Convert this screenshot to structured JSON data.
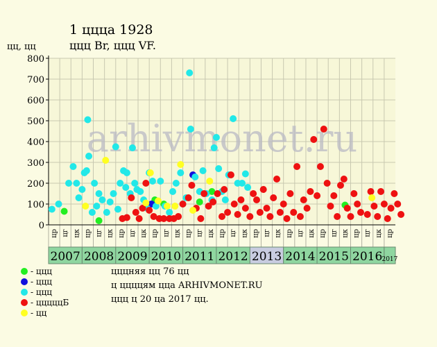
{
  "title_line1": "1 цццa 1928",
  "title_line2": "ццц Br, ццц VF.",
  "y_axis_unit": "цц, цц",
  "watermark": "arhivmonet.ru",
  "notes": [
    "цццняя цц 76 цц",
    "ц ццццям цца ARHIVMONET.RU",
    "ццц ц 20 цa 2017 цц."
  ],
  "legend": [
    {
      "color": "#22ee22",
      "label": "- ццц"
    },
    {
      "color": "#1010dd",
      "label": "- ццц"
    },
    {
      "color": "#22e8e8",
      "label": "- ццц"
    },
    {
      "color": "#ee1111",
      "label": "- цццццБ"
    },
    {
      "color": "#ffff22",
      "label": "- цц"
    }
  ],
  "chart_data": {
    "type": "scatter",
    "ylim": [
      0,
      800
    ],
    "yticks": [
      0,
      100,
      200,
      300,
      400,
      500,
      600,
      700,
      800
    ],
    "quarter_labels": [
      "цр",
      "цг",
      "цк"
    ],
    "years": [
      {
        "label": "2007",
        "quarters": 3,
        "color": "#8fd6a0"
      },
      {
        "label": "2008",
        "quarters": 3,
        "color": "#8fd6a0"
      },
      {
        "label": "2009",
        "quarters": 3,
        "color": "#8fd6a0"
      },
      {
        "label": "2010",
        "quarters": 3,
        "color": "#8fd6a0"
      },
      {
        "label": "2011",
        "quarters": 3,
        "color": "#8fd6a0"
      },
      {
        "label": "2012",
        "quarters": 3,
        "color": "#8fd6a0"
      },
      {
        "label": "2013",
        "quarters": 3,
        "color": "#c8cce0"
      },
      {
        "label": "2014",
        "quarters": 3,
        "color": "#8fd6a0"
      },
      {
        "label": "2015",
        "quarters": 3,
        "color": "#8fd6a0"
      },
      {
        "label": "2016",
        "quarters": 3,
        "color": "#8fd6a0"
      },
      {
        "label": "2017",
        "quarters": 1,
        "color": "#8fd6a0"
      }
    ],
    "series": [
      {
        "name": "ццц",
        "color": "#22ee22",
        "points": [
          [
            1.4,
            65
          ],
          [
            4.5,
            20
          ],
          [
            9.5,
            120
          ],
          [
            10.3,
            100
          ],
          [
            13.5,
            110
          ],
          [
            14.6,
            160
          ],
          [
            26.5,
            95
          ]
        ]
      },
      {
        "name": "ццц",
        "color": "#1010dd",
        "points": [
          [
            9.2,
            100
          ],
          [
            12.9,
            240
          ]
        ]
      },
      {
        "name": "ццц",
        "color": "#22e8e8",
        "points": [
          [
            0.3,
            75
          ],
          [
            0.9,
            100
          ],
          [
            1.8,
            200
          ],
          [
            2.2,
            280
          ],
          [
            2.5,
            200
          ],
          [
            2.7,
            130
          ],
          [
            3.0,
            170
          ],
          [
            3.2,
            250
          ],
          [
            3.4,
            260
          ],
          [
            3.5,
            505
          ],
          [
            3.6,
            330
          ],
          [
            3.9,
            60
          ],
          [
            4.1,
            200
          ],
          [
            4.3,
            90
          ],
          [
            4.5,
            150
          ],
          [
            4.8,
            120
          ],
          [
            5.2,
            60
          ],
          [
            5.5,
            110
          ],
          [
            5.8,
            150
          ],
          [
            6.0,
            375
          ],
          [
            6.2,
            75
          ],
          [
            6.4,
            200
          ],
          [
            6.7,
            260
          ],
          [
            6.9,
            180
          ],
          [
            7.0,
            250
          ],
          [
            7.3,
            150
          ],
          [
            7.5,
            370
          ],
          [
            7.7,
            200
          ],
          [
            7.9,
            170
          ],
          [
            8.2,
            160
          ],
          [
            8.5,
            120
          ],
          [
            8.8,
            80
          ],
          [
            9.0,
            250
          ],
          [
            9.3,
            210
          ],
          [
            9.6,
            90
          ],
          [
            10.0,
            210
          ],
          [
            10.4,
            90
          ],
          [
            10.8,
            60
          ],
          [
            11.1,
            160
          ],
          [
            11.4,
            200
          ],
          [
            11.8,
            250
          ],
          [
            12.0,
            100
          ],
          [
            12.3,
            130
          ],
          [
            12.6,
            730
          ],
          [
            12.7,
            460
          ],
          [
            13.1,
            230
          ],
          [
            13.5,
            160
          ],
          [
            13.8,
            260
          ],
          [
            14.1,
            150
          ],
          [
            14.6,
            120
          ],
          [
            14.8,
            370
          ],
          [
            15.0,
            420
          ],
          [
            15.2,
            270
          ],
          [
            15.5,
            160
          ],
          [
            15.8,
            120
          ],
          [
            16.1,
            240
          ],
          [
            16.5,
            510
          ],
          [
            16.9,
            200
          ],
          [
            17.3,
            200
          ],
          [
            17.6,
            245
          ],
          [
            17.8,
            180
          ]
        ]
      },
      {
        "name": "цццццБ",
        "color": "#ee1111",
        "points": [
          [
            6.6,
            30
          ],
          [
            7.0,
            35
          ],
          [
            7.4,
            130
          ],
          [
            7.8,
            60
          ],
          [
            8.1,
            30
          ],
          [
            8.4,
            80
          ],
          [
            8.7,
            200
          ],
          [
            9.0,
            70
          ],
          [
            9.4,
            40
          ],
          [
            9.9,
            30
          ],
          [
            10.3,
            30
          ],
          [
            10.8,
            30
          ],
          [
            11.2,
            30
          ],
          [
            11.6,
            40
          ],
          [
            12.0,
            100
          ],
          [
            12.5,
            130
          ],
          [
            12.8,
            190
          ],
          [
            13.2,
            80
          ],
          [
            13.6,
            30
          ],
          [
            13.9,
            150
          ],
          [
            14.3,
            90
          ],
          [
            14.7,
            110
          ],
          [
            15.1,
            150
          ],
          [
            15.5,
            40
          ],
          [
            15.7,
            170
          ],
          [
            16.0,
            60
          ],
          [
            16.3,
            240
          ],
          [
            16.6,
            100
          ],
          [
            16.9,
            50
          ],
          [
            17.2,
            120
          ],
          [
            17.6,
            80
          ],
          [
            18.0,
            40
          ],
          [
            18.3,
            150
          ],
          [
            18.6,
            120
          ],
          [
            18.9,
            60
          ],
          [
            19.2,
            170
          ],
          [
            19.5,
            80
          ],
          [
            19.8,
            40
          ],
          [
            20.1,
            130
          ],
          [
            20.4,
            220
          ],
          [
            20.7,
            60
          ],
          [
            21.0,
            100
          ],
          [
            21.3,
            30
          ],
          [
            21.6,
            150
          ],
          [
            21.9,
            60
          ],
          [
            22.2,
            280
          ],
          [
            22.5,
            40
          ],
          [
            22.8,
            120
          ],
          [
            23.1,
            80
          ],
          [
            23.4,
            160
          ],
          [
            23.7,
            410
          ],
          [
            24.0,
            140
          ],
          [
            24.3,
            280
          ],
          [
            24.6,
            460
          ],
          [
            24.9,
            200
          ],
          [
            25.2,
            90
          ],
          [
            25.5,
            140
          ],
          [
            25.8,
            40
          ],
          [
            26.1,
            190
          ],
          [
            26.4,
            220
          ],
          [
            26.7,
            80
          ],
          [
            27.0,
            40
          ],
          [
            27.3,
            150
          ],
          [
            27.6,
            100
          ],
          [
            27.9,
            60
          ],
          [
            28.5,
            50
          ],
          [
            28.8,
            160
          ],
          [
            29.1,
            90
          ],
          [
            29.4,
            40
          ],
          [
            29.7,
            160
          ],
          [
            30.0,
            100
          ],
          [
            30.3,
            30
          ],
          [
            30.6,
            80
          ],
          [
            30.9,
            150
          ],
          [
            31.2,
            100
          ],
          [
            31.5,
            50
          ]
        ]
      },
      {
        "name": "цц",
        "color": "#ffff22",
        "points": [
          [
            3.3,
            90
          ],
          [
            5.1,
            310
          ],
          [
            8.7,
            105
          ],
          [
            9.1,
            250
          ],
          [
            9.8,
            115
          ],
          [
            10.6,
            90
          ],
          [
            11.3,
            90
          ],
          [
            11.8,
            290
          ],
          [
            12.9,
            70
          ],
          [
            14.4,
            210
          ],
          [
            28.9,
            130
          ]
        ]
      }
    ]
  }
}
